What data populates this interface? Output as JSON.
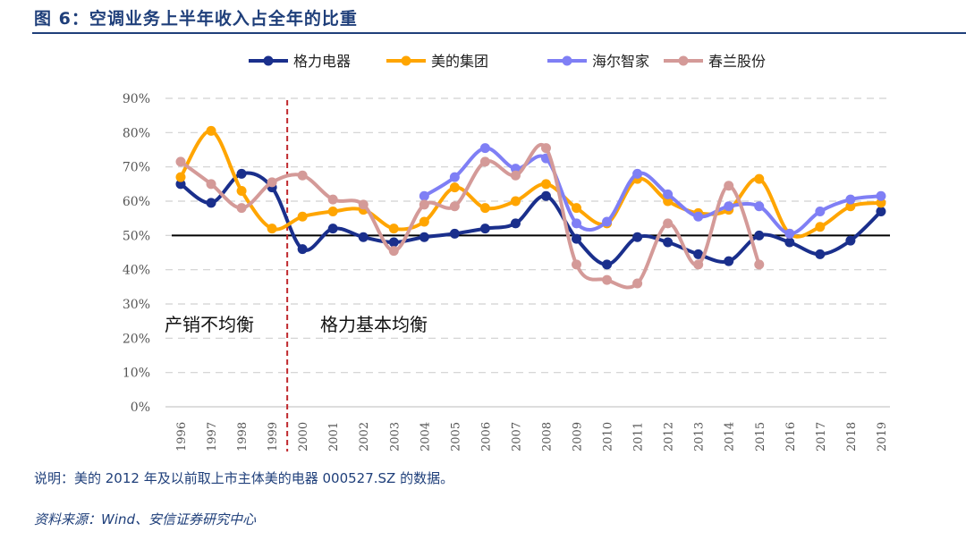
{
  "title": "图 6：空调业务上半年收入占全年的比重",
  "note": "说明：美的 2012 年及以前取上市主体美的电器 000527.SZ 的数据。",
  "source": "资料来源：Wind、安信证券研究中心",
  "chart_data": {
    "type": "line",
    "x": [
      "1996",
      "1997",
      "1998",
      "1999",
      "2000",
      "2001",
      "2002",
      "2003",
      "2004",
      "2005",
      "2006",
      "2007",
      "2008",
      "2009",
      "2010",
      "2011",
      "2012",
      "2013",
      "2014",
      "2015",
      "2016",
      "2017",
      "2018",
      "2019"
    ],
    "ylim": [
      0,
      90
    ],
    "yticks": [
      "0%",
      "10%",
      "20%",
      "30%",
      "40%",
      "50%",
      "60%",
      "70%",
      "80%",
      "90%"
    ],
    "grid": true,
    "legend": "top",
    "reference_line": 50,
    "divider_between": [
      "1999",
      "2000"
    ],
    "annotations": [
      "产销不均衡",
      "格力基本均衡"
    ],
    "series": [
      {
        "name": "格力电器",
        "color": "#1a2f8c",
        "values": [
          65,
          59.5,
          68,
          64,
          46,
          52,
          49.5,
          48,
          49.5,
          50.5,
          52,
          53.5,
          61.5,
          49,
          41.5,
          49.5,
          48,
          44.5,
          42.5,
          50,
          48,
          44.5,
          48.5,
          57
        ]
      },
      {
        "name": "美的集团",
        "color": "#ffa500",
        "values": [
          67,
          80.5,
          63,
          52,
          55.5,
          57,
          57.5,
          52,
          54,
          64,
          58,
          60,
          65,
          58,
          53.5,
          66.5,
          60,
          56.5,
          57.5,
          66.5,
          50.5,
          52.5,
          58.5,
          59.5
        ]
      },
      {
        "name": "海尔智家",
        "color": "#7f7ff5",
        "values": [
          null,
          null,
          null,
          null,
          null,
          null,
          null,
          null,
          61.5,
          67,
          75.5,
          69.5,
          72.5,
          53.5,
          54,
          68,
          62,
          55.5,
          58.5,
          58.5,
          50.5,
          57,
          60.5,
          61.5
        ]
      },
      {
        "name": "春兰股份",
        "color": "#d49a98",
        "values": [
          71.5,
          65,
          58,
          65.5,
          67.5,
          60.5,
          59,
          45.5,
          59,
          58.5,
          71.5,
          67.5,
          75.5,
          41.5,
          37,
          36,
          53.5,
          41.5,
          64.5,
          41.5,
          null,
          null,
          null,
          null
        ]
      }
    ]
  }
}
